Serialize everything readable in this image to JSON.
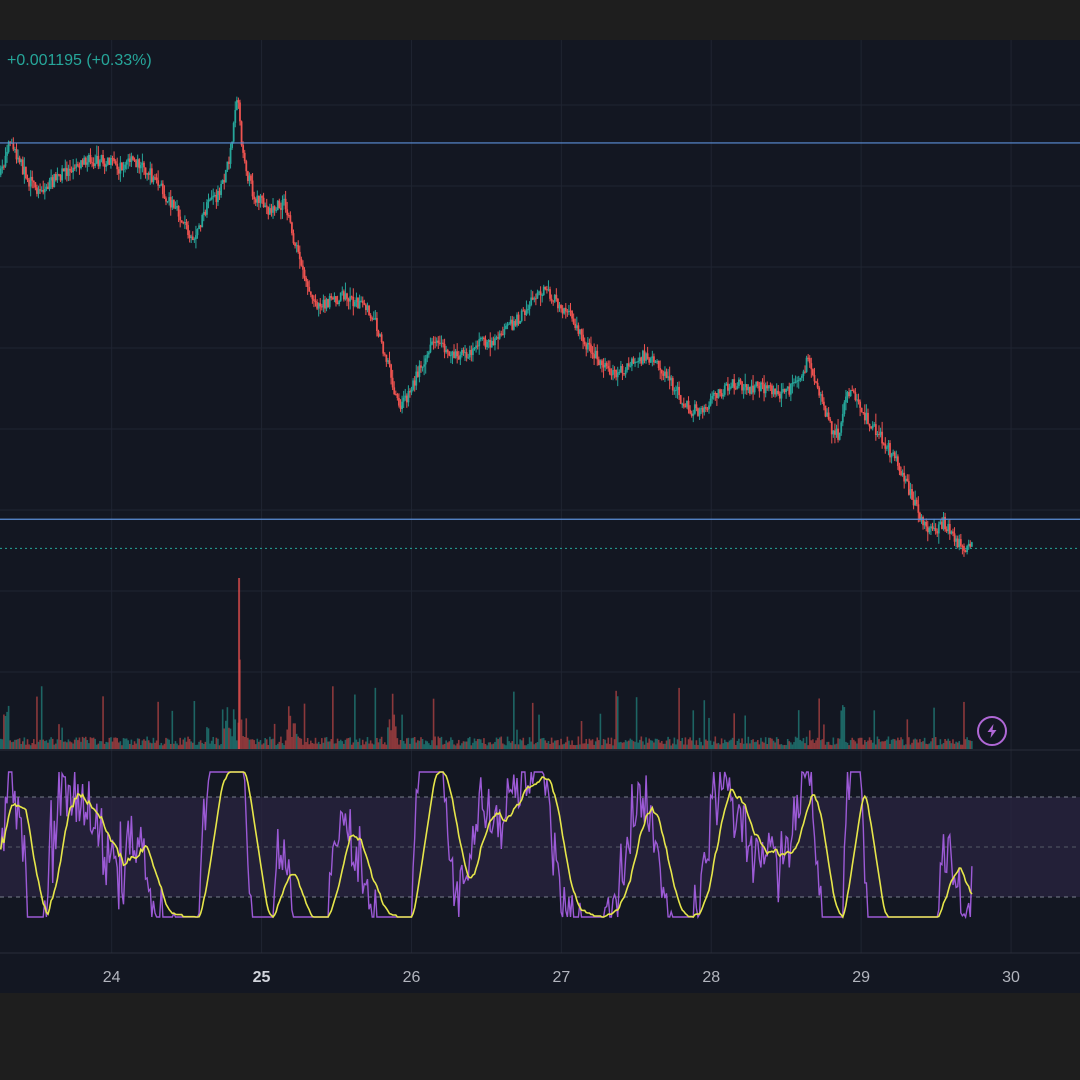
{
  "header": {
    "change_text": "+0.001195 (+0.33%)"
  },
  "colors": {
    "background": "#131722",
    "outer": "#1e1e1e",
    "grid": "#1f2431",
    "up": "#26a69a",
    "down": "#ef5350",
    "hline": "#5b8fd9",
    "rsi": "#9c5ad6",
    "rsi_ma": "#e6e64a",
    "rsi_band": "#2a2440"
  },
  "alert_button": {
    "icon": "lightning-icon"
  },
  "chart_data": {
    "type": "candlestick",
    "x_axis": {
      "ticks": [
        {
          "label": "24",
          "day": 24,
          "bold": false
        },
        {
          "label": "25",
          "day": 25,
          "bold": true
        },
        {
          "label": "26",
          "day": 26,
          "bold": false
        },
        {
          "label": "27",
          "day": 27,
          "bold": false
        },
        {
          "label": "28",
          "day": 28,
          "bold": false
        },
        {
          "label": "29",
          "day": 29,
          "bold": false
        },
        {
          "label": "30",
          "day": 30,
          "bold": false
        }
      ],
      "range": [
        23.255,
        30.46
      ]
    },
    "price": {
      "range": [
        0.9,
        0.03
      ],
      "horizontal_levels": [
        0.145,
        0.675
      ],
      "current_price_line": 0.716,
      "path": [
        [
          23.26,
          0.19
        ],
        [
          23.32,
          0.14
        ],
        [
          23.45,
          0.2
        ],
        [
          23.53,
          0.215
        ],
        [
          23.6,
          0.2
        ],
        [
          23.75,
          0.175
        ],
        [
          23.85,
          0.17
        ],
        [
          23.95,
          0.17
        ],
        [
          24.05,
          0.18
        ],
        [
          24.12,
          0.17
        ],
        [
          24.2,
          0.175
        ],
        [
          24.3,
          0.2
        ],
        [
          24.4,
          0.23
        ],
        [
          24.5,
          0.265
        ],
        [
          24.55,
          0.28
        ],
        [
          24.65,
          0.23
        ],
        [
          24.72,
          0.22
        ],
        [
          24.78,
          0.17
        ],
        [
          24.84,
          0.085
        ],
        [
          24.88,
          0.17
        ],
        [
          24.95,
          0.22
        ],
        [
          25.05,
          0.24
        ],
        [
          25.15,
          0.23
        ],
        [
          25.25,
          0.31
        ],
        [
          25.35,
          0.37
        ],
        [
          25.45,
          0.37
        ],
        [
          25.55,
          0.36
        ],
        [
          25.65,
          0.37
        ],
        [
          25.75,
          0.39
        ],
        [
          25.85,
          0.46
        ],
        [
          25.92,
          0.52
        ],
        [
          26.0,
          0.49
        ],
        [
          26.08,
          0.45
        ],
        [
          26.15,
          0.43
        ],
        [
          26.25,
          0.44
        ],
        [
          26.35,
          0.445
        ],
        [
          26.45,
          0.425
        ],
        [
          26.55,
          0.425
        ],
        [
          26.65,
          0.405
        ],
        [
          26.75,
          0.385
        ],
        [
          26.85,
          0.35
        ],
        [
          26.95,
          0.365
        ],
        [
          27.05,
          0.385
        ],
        [
          27.15,
          0.425
        ],
        [
          27.25,
          0.45
        ],
        [
          27.35,
          0.47
        ],
        [
          27.45,
          0.46
        ],
        [
          27.55,
          0.445
        ],
        [
          27.65,
          0.46
        ],
        [
          27.75,
          0.49
        ],
        [
          27.85,
          0.52
        ],
        [
          27.95,
          0.525
        ],
        [
          28.05,
          0.495
        ],
        [
          28.15,
          0.485
        ],
        [
          28.25,
          0.49
        ],
        [
          28.35,
          0.49
        ],
        [
          28.45,
          0.5
        ],
        [
          28.55,
          0.49
        ],
        [
          28.65,
          0.45
        ],
        [
          28.72,
          0.5
        ],
        [
          28.8,
          0.55
        ],
        [
          28.85,
          0.555
        ],
        [
          28.9,
          0.5
        ],
        [
          28.95,
          0.495
        ],
        [
          29.05,
          0.54
        ],
        [
          29.15,
          0.565
        ],
        [
          29.25,
          0.6
        ],
        [
          29.35,
          0.65
        ],
        [
          29.45,
          0.695
        ],
        [
          29.55,
          0.68
        ],
        [
          29.65,
          0.71
        ],
        [
          29.72,
          0.715
        ]
      ]
    },
    "volume": {
      "range": [
        0,
        1.0
      ]
    },
    "rsi": {
      "range": [
        100,
        0
      ],
      "bands": [
        70,
        30
      ],
      "midline": 50
    }
  }
}
